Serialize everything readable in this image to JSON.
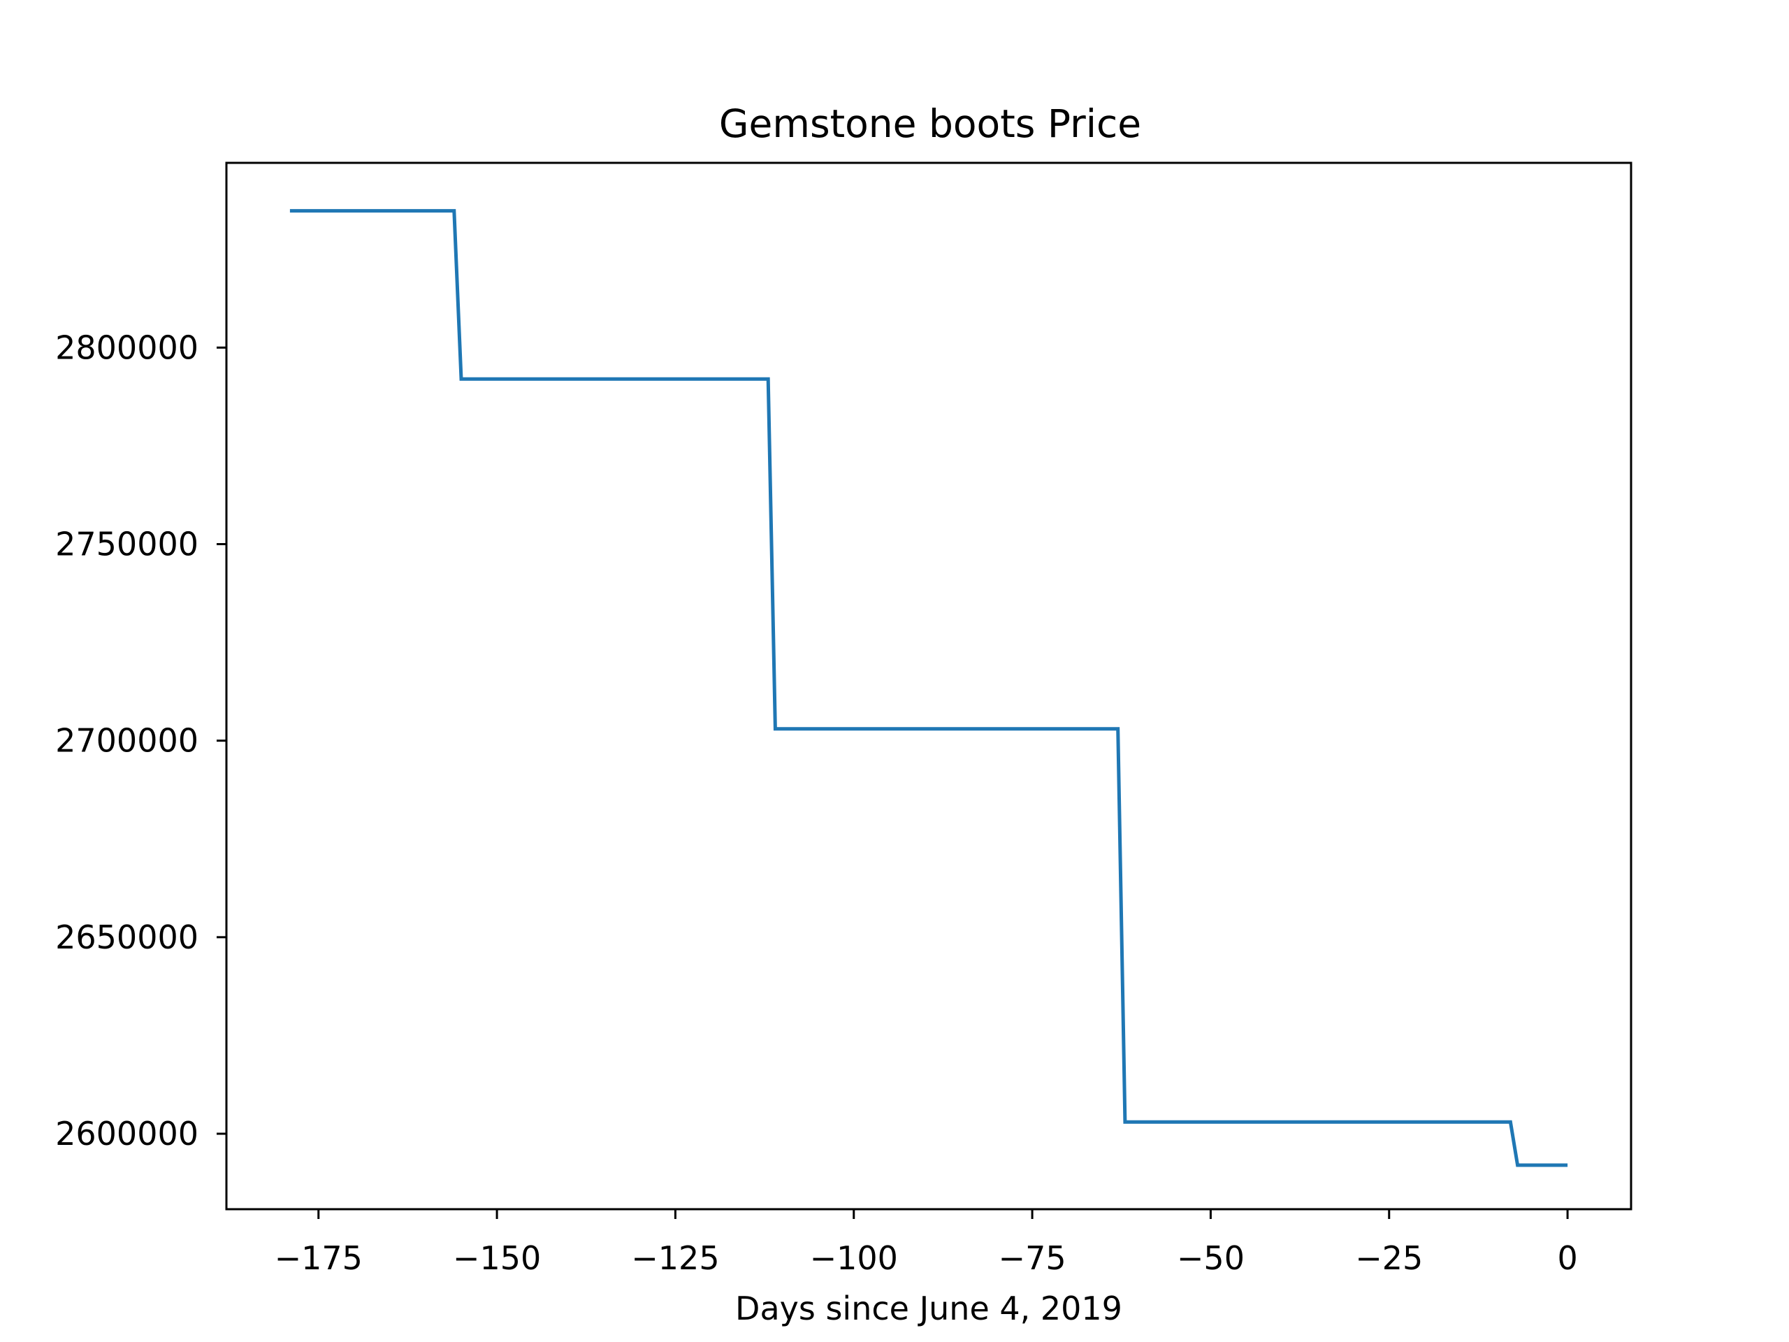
{
  "chart_data": {
    "type": "line",
    "title": "Gemstone boots Price",
    "xlabel": "Days since June 4, 2019",
    "ylabel": "",
    "xlim": [
      -187.9,
      8.9
    ],
    "ylim": [
      2580800,
      2847000
    ],
    "xticks": [
      -175,
      -150,
      -125,
      -100,
      -75,
      -50,
      -25,
      0
    ],
    "xtick_labels": [
      "−175",
      "−150",
      "−125",
      "−100",
      "−75",
      "−50",
      "−25",
      "0"
    ],
    "yticks": [
      2600000,
      2650000,
      2700000,
      2750000,
      2800000
    ],
    "ytick_labels": [
      "2600000",
      "2650000",
      "2700000",
      "2750000",
      "2800000"
    ],
    "grid": false,
    "series": [
      {
        "color": "#1f77b4",
        "x": [
          -179,
          -156,
          -155,
          -112,
          -111,
          -63,
          -62,
          -8,
          -7,
          0
        ],
        "y": [
          2834800,
          2834800,
          2792000,
          2792000,
          2703000,
          2703000,
          2603000,
          2603000,
          2592000,
          2592000
        ]
      }
    ]
  }
}
